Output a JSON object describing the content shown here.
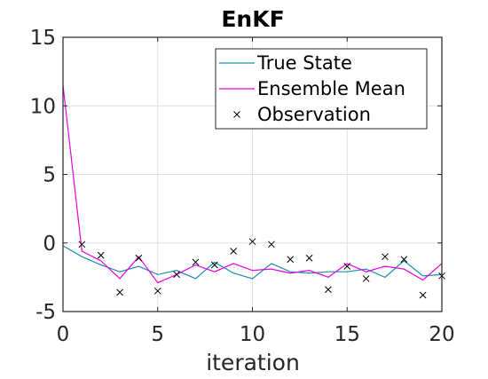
{
  "chart_data": {
    "type": "line",
    "title": "EnKF",
    "xlabel": "iteration",
    "ylabel": "",
    "xlim": [
      0,
      20
    ],
    "ylim": [
      -5,
      15
    ],
    "xticks": [
      0,
      5,
      10,
      15,
      20
    ],
    "xtick_labels": [
      "0",
      "5",
      "10",
      "15",
      "20"
    ],
    "yticks": [
      -5,
      0,
      5,
      10,
      15
    ],
    "ytick_labels": [
      "-5",
      "0",
      "5",
      "10",
      "15"
    ],
    "grid": true,
    "legend_position": "top-right",
    "series": [
      {
        "name": "True State",
        "style": "line",
        "color": "#1a8fa8",
        "x": [
          0,
          1,
          2,
          3,
          4,
          5,
          6,
          7,
          8,
          9,
          10,
          11,
          12,
          13,
          14,
          15,
          16,
          17,
          18,
          19,
          20
        ],
        "values": [
          -0.2,
          -1.0,
          -1.6,
          -2.1,
          -1.7,
          -2.3,
          -2.0,
          -2.6,
          -1.4,
          -2.2,
          -2.6,
          -1.5,
          -2.1,
          -2.2,
          -2.1,
          -2.1,
          -1.9,
          -2.5,
          -1.3,
          -2.4,
          -2.3
        ]
      },
      {
        "name": "Ensemble Mean",
        "style": "line",
        "color": "#e600e6",
        "x": [
          0,
          1,
          2,
          3,
          4,
          5,
          6,
          7,
          8,
          9,
          10,
          11,
          12,
          13,
          14,
          15,
          16,
          17,
          18,
          19,
          20
        ],
        "values": [
          11.5,
          -0.6,
          -1.3,
          -2.6,
          -1.0,
          -2.9,
          -2.3,
          -1.6,
          -2.1,
          -1.5,
          -2.0,
          -1.9,
          -2.2,
          -2.0,
          -2.5,
          -1.5,
          -2.1,
          -1.7,
          -1.9,
          -2.7,
          -1.5
        ]
      },
      {
        "name": "Observation",
        "style": "marker-x",
        "color": "#000000",
        "x": [
          1,
          2,
          3,
          4,
          5,
          6,
          7,
          8,
          9,
          10,
          11,
          12,
          13,
          14,
          15,
          16,
          17,
          18,
          19,
          20
        ],
        "values": [
          -0.1,
          -0.9,
          -3.6,
          -1.1,
          -3.5,
          -2.3,
          -1.4,
          -1.6,
          -0.6,
          0.1,
          -0.1,
          -1.2,
          -1.1,
          -3.4,
          -1.7,
          -2.6,
          -1.0,
          -1.2,
          -3.8,
          -2.4
        ]
      }
    ]
  }
}
